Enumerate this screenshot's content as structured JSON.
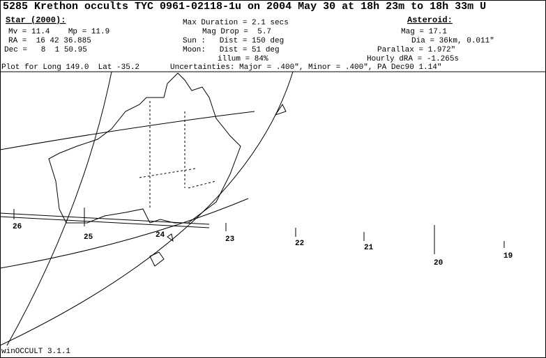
{
  "header": {
    "title": "5285 Krethon occults TYC 0961-02118-1u on 2004 May 30 at 18h 23m to 18h 33m U",
    "star": {
      "heading": "Star (2000):",
      "lines": [
        "Mv = 11.4    Mp = 11.9",
        "RA =  16 42 36.885",
        "Dec =   8  1 50.95"
      ]
    },
    "event": {
      "lines": [
        "Max Duration = 2.1 secs",
        "Mag Drop =  5.7",
        "Sun :   Dist = 150 deg",
        "Moon:   Dist = 51 deg",
        "illum = 84%"
      ]
    },
    "asteroid": {
      "heading": "Asteroid:",
      "lines": [
        "Mag = 17.1",
        "Dia = 36km, 0.011\"",
        "Parallax = 1.972\"",
        "Hourly dRA = -1.265s"
      ]
    },
    "plot_for": "Plot for Long 149.0  Lat -35.2",
    "uncertainties": "Uncertainties: Major = .400\", Minor = .400\", PA Dec90 1.14\""
  },
  "map": {
    "time_labels": [
      "26",
      "25",
      "24",
      "23",
      "22",
      "21",
      "20",
      "19"
    ]
  },
  "footer": {
    "version": "winOCCULT 3.1.1"
  }
}
